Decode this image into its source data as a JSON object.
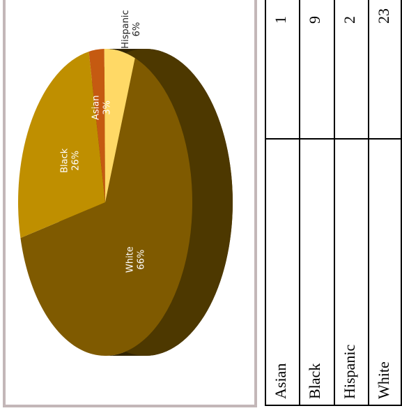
{
  "chart_data": {
    "type": "pie",
    "categories": [
      "White",
      "Black",
      "Asian",
      "Hispanic"
    ],
    "values": [
      23,
      9,
      1,
      2
    ],
    "percent_labels": [
      "66%",
      "26%",
      "3%",
      "6%"
    ],
    "colors": {
      "White": "#7f5a00",
      "Black": "#bf8f00",
      "Asian": "#c55a11",
      "Hispanic": "#ffd966"
    },
    "side_color": "#4d3800"
  },
  "table": {
    "rows": [
      {
        "label": "Asian",
        "value": "1"
      },
      {
        "label": "Black",
        "value": "9"
      },
      {
        "label": "Hispanic",
        "value": "2"
      },
      {
        "label": "White",
        "value": "23"
      }
    ]
  }
}
